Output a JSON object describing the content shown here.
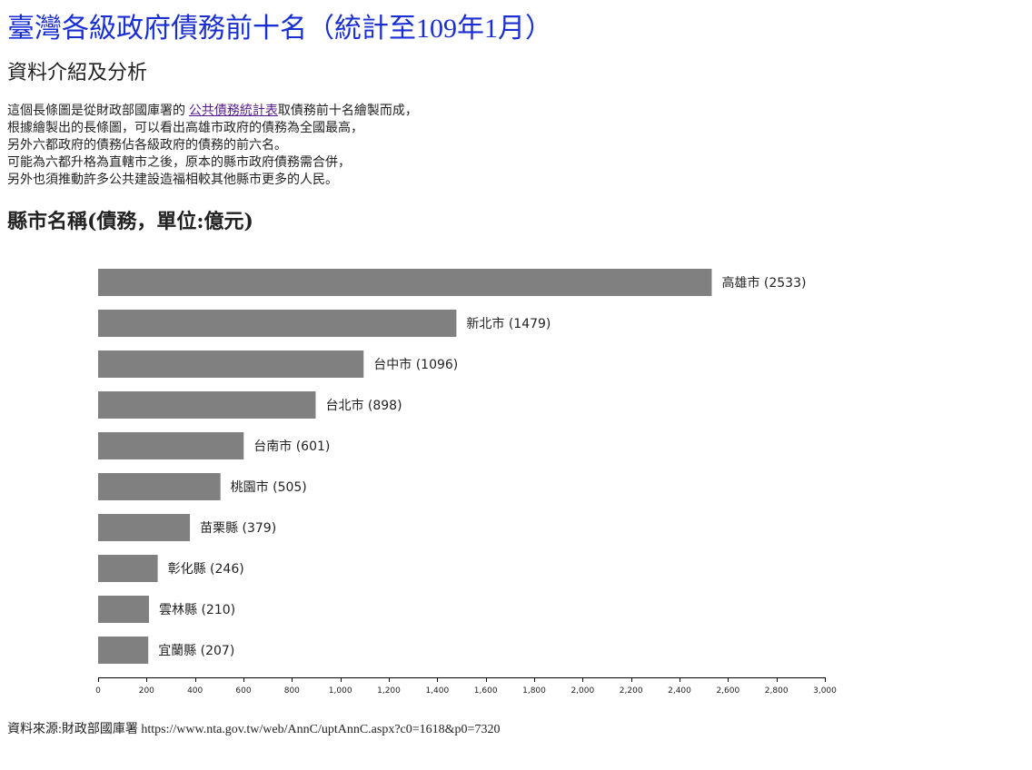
{
  "page": {
    "title": "臺灣各級政府債務前十名（統計至109年1月）",
    "section_title": "資料介紹及分析",
    "intro": {
      "line1_pre": "這個長條圖是從財政部國庫署的 ",
      "line1_link": "公共債務統計表",
      "line1_post": "取債務前十名繪製而成，",
      "line2": "根據繪製出的長條圖，可以看出高雄市政府的債務為全國最高，",
      "line3": "另外六都政府的債務佔各級政府的債務的前六名。",
      "line4": "可能為六都升格為直轄市之後，原本的縣市政府債務需合併，",
      "line5": "另外也須推動許多公共建設造福相較其他縣市更多的人民。"
    },
    "source": "資料來源:財政部國庫署 https://www.nta.gov.tw/web/AnnC/uptAnnC.aspx?c0=1618&p0=7320"
  },
  "chart_data": {
    "type": "bar",
    "orientation": "horizontal",
    "title": "縣市名稱(債務，單位:億元)",
    "categories": [
      "高雄市",
      "新北市",
      "台中市",
      "台北市",
      "台南市",
      "桃園市",
      "苗栗縣",
      "彰化縣",
      "雲林縣",
      "宜蘭縣"
    ],
    "values": [
      2533,
      1479,
      1096,
      898,
      601,
      505,
      379,
      246,
      210,
      207
    ],
    "xlim": [
      0,
      3000
    ],
    "xticks": [
      0,
      200,
      400,
      600,
      800,
      1000,
      1200,
      1400,
      1600,
      1800,
      2000,
      2200,
      2400,
      2600,
      2800,
      3000
    ],
    "xtick_labels": [
      "0",
      "200",
      "400",
      "600",
      "800",
      "1,000",
      "1,200",
      "1,400",
      "1,600",
      "1,800",
      "2,000",
      "2,200",
      "2,400",
      "2,600",
      "2,800",
      "3,000"
    ],
    "bar_color": "#808080",
    "grid": false,
    "legend": "none"
  }
}
